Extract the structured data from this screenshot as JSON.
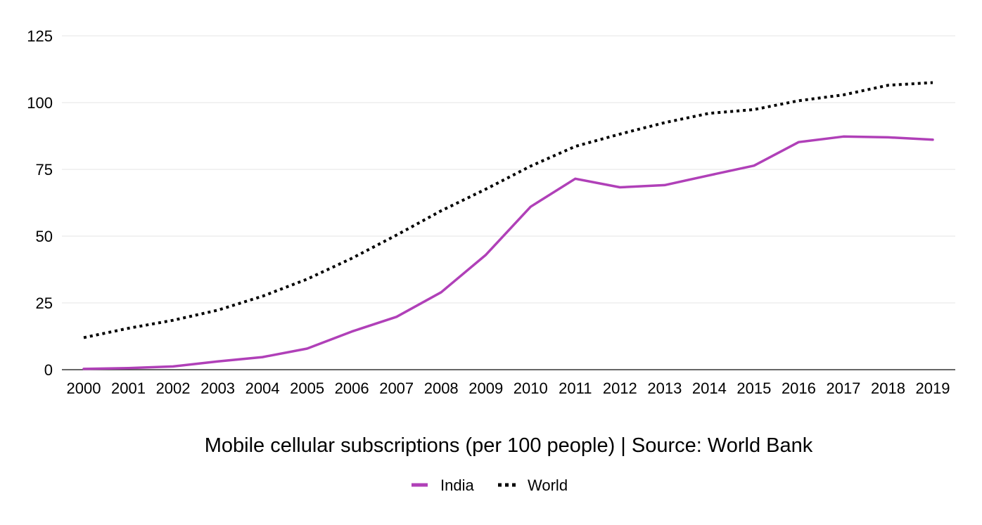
{
  "chart_data": {
    "type": "line",
    "xlabel": "Mobile cellular subscriptions (per 100 people) | Source: World Bank",
    "ylabel": "",
    "ylim": [
      0,
      125
    ],
    "yticks": [
      0,
      25,
      50,
      75,
      100,
      125
    ],
    "grid": true,
    "legend_position": "bottom-center",
    "x": [
      "2000",
      "2001",
      "2002",
      "2003",
      "2004",
      "2005",
      "2006",
      "2007",
      "2008",
      "2009",
      "2010",
      "2011",
      "2012",
      "2013",
      "2014",
      "2015",
      "2016",
      "2017",
      "2018",
      "2019"
    ],
    "series": [
      {
        "name": "India",
        "color": "#b040b8",
        "style": "solid",
        "values": [
          0.3,
          0.6,
          1.2,
          3.1,
          4.7,
          7.9,
          14.3,
          19.8,
          29.0,
          43.0,
          61.0,
          71.5,
          68.3,
          69.1,
          72.8,
          76.4,
          85.2,
          87.3,
          87.0,
          86.1
        ]
      },
      {
        "name": "World",
        "color": "#000000",
        "style": "dotted",
        "values": [
          12.0,
          15.5,
          18.5,
          22.3,
          27.5,
          33.9,
          41.7,
          50.4,
          59.5,
          67.6,
          76.2,
          83.6,
          88.2,
          92.5,
          96.0,
          97.4,
          100.7,
          102.9,
          106.5,
          107.5
        ]
      }
    ]
  }
}
